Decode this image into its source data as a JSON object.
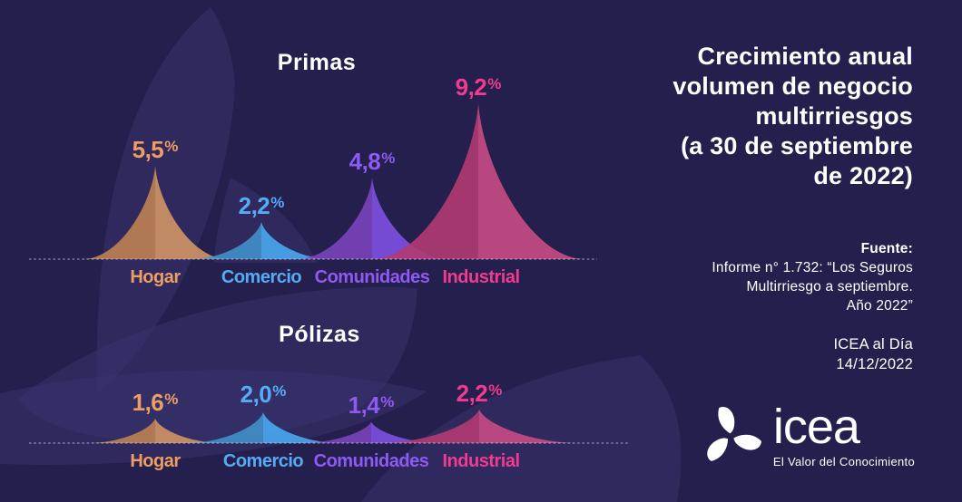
{
  "page": {
    "background_color": "#241f4c",
    "decorative_shape_color": "#3a3470"
  },
  "header": {
    "title_lines": [
      "Crecimiento anual",
      "volumen de negocio",
      "multirriesgos",
      "(a 30 de septiembre",
      "de 2022)"
    ]
  },
  "source": {
    "label": "Fuente:",
    "lines": [
      "Informe n° 1.732: “Los Seguros",
      "Multirriesgo a septiembre.",
      "Año 2022”"
    ],
    "publication": "ICEA al Día",
    "date": "14/12/2022"
  },
  "logo": {
    "wordmark": "icea",
    "tagline": "El Valor del Conocimiento"
  },
  "chart_data": [
    {
      "type": "area",
      "title": "Primas",
      "categories": [
        "Hogar",
        "Comercio",
        "Comunidades",
        "Industrial"
      ],
      "values": [
        5.5,
        2.2,
        4.8,
        9.2
      ],
      "value_labels": [
        "5,5",
        "2,2",
        "4,8",
        "9,2"
      ],
      "percent_sign": "%",
      "unit": "%",
      "ylim": [
        0,
        9.5
      ],
      "baseline": "dashed",
      "legend": false
    },
    {
      "type": "area",
      "title": "Pólizas",
      "categories": [
        "Hogar",
        "Comercio",
        "Comunidades",
        "Industrial"
      ],
      "values": [
        1.6,
        2.0,
        1.4,
        2.2
      ],
      "value_labels": [
        "1,6",
        "2,0",
        "1,4",
        "2,2"
      ],
      "percent_sign": "%",
      "unit": "%",
      "ylim": [
        0,
        2.5
      ],
      "baseline": "dashed",
      "legend": false
    }
  ],
  "series_colors": {
    "hogar": {
      "left": "#bf8152",
      "right": "#d29465",
      "label": "#ee9d63"
    },
    "comercio": {
      "left": "#4190c9",
      "right": "#4aa8ef",
      "label": "#55acf5"
    },
    "comunidades": {
      "left": "#7a42ba",
      "right": "#8050e2",
      "label": "#8d5bf2"
    },
    "industrial": {
      "left": "#b23a72",
      "right": "#c94a85",
      "label": "#f03b90"
    }
  },
  "baseline_color": "#d8d3ee"
}
